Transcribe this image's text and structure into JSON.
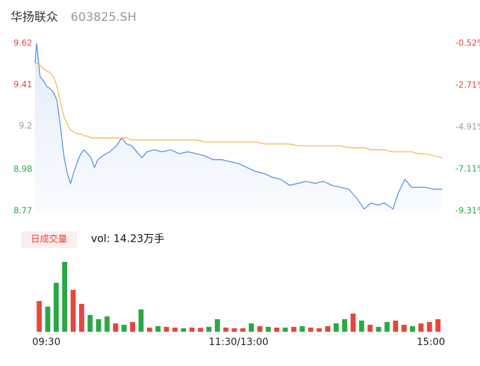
{
  "header": {
    "name": "华扬联众",
    "code": "603825.SH"
  },
  "chart_data": [
    {
      "type": "line",
      "x": [
        0,
        1,
        3,
        5,
        7,
        9,
        11,
        13,
        15,
        17,
        19,
        21,
        23,
        25,
        27,
        29,
        31,
        33,
        35,
        37,
        40,
        44,
        48,
        51,
        54,
        57,
        60,
        63,
        66,
        70,
        75,
        80,
        85,
        90,
        95,
        100,
        105,
        110,
        115,
        120,
        125,
        130,
        135,
        140,
        145,
        150,
        155,
        160,
        165,
        170,
        175,
        180,
        185,
        190,
        194,
        198,
        202,
        206,
        211,
        214,
        218,
        222,
        226,
        230,
        235,
        240
      ],
      "xlim": [
        0,
        240
      ],
      "series": [
        {
          "color": "#4a86e8",
          "area": true,
          "values": [
            9.52,
            9.62,
            9.45,
            9.43,
            9.4,
            9.39,
            9.37,
            9.33,
            9.2,
            9.05,
            8.96,
            8.91,
            8.97,
            9.02,
            9.06,
            9.08,
            9.06,
            9.04,
            8.99,
            9.03,
            9.05,
            9.07,
            9.1,
            9.14,
            9.11,
            9.1,
            9.07,
            9.04,
            9.07,
            9.08,
            9.07,
            9.08,
            9.06,
            9.07,
            9.06,
            9.05,
            9.03,
            9.03,
            9.02,
            9.01,
            8.99,
            8.97,
            8.96,
            8.94,
            8.93,
            8.9,
            8.91,
            8.92,
            8.91,
            8.92,
            8.9,
            8.89,
            8.88,
            8.83,
            8.78,
            8.81,
            8.8,
            8.81,
            8.78,
            8.86,
            8.93,
            8.89,
            8.89,
            8.89,
            8.88,
            8.88
          ]
        },
        {
          "color": "#f5b335",
          "area": false,
          "values": [
            9.52,
            9.52,
            9.51,
            9.49,
            9.48,
            9.47,
            9.45,
            9.4,
            9.32,
            9.25,
            9.21,
            9.18,
            9.17,
            9.16,
            9.16,
            9.15,
            9.15,
            9.14,
            9.14,
            9.14,
            9.14,
            9.14,
            9.14,
            9.14,
            9.14,
            9.13,
            9.13,
            9.13,
            9.13,
            9.13,
            9.13,
            9.13,
            9.13,
            9.13,
            9.13,
            9.12,
            9.12,
            9.12,
            9.12,
            9.12,
            9.12,
            9.12,
            9.11,
            9.11,
            9.11,
            9.11,
            9.1,
            9.1,
            9.1,
            9.1,
            9.1,
            9.1,
            9.09,
            9.09,
            9.09,
            9.08,
            9.08,
            9.08,
            9.07,
            9.07,
            9.07,
            9.07,
            9.06,
            9.06,
            9.05,
            9.04
          ]
        }
      ],
      "ylim": [
        8.77,
        9.62
      ],
      "yticks": [
        9.62,
        9.41,
        9.2,
        8.98,
        8.77
      ],
      "ytick_colors": [
        "#e8453c",
        "#e8453c",
        "#999999",
        "#2aa845",
        "#2aa845"
      ],
      "y2lim": [
        -9.31,
        -0.52
      ],
      "y2ticks": [
        {
          "value": -0.52,
          "label": "-0.52%"
        },
        {
          "value": -2.71,
          "label": "-2.71%"
        },
        {
          "value": -4.91,
          "label": "-4.91%"
        },
        {
          "value": -7.11,
          "label": "-7.11%"
        },
        {
          "value": -9.31,
          "label": "-9.31%"
        }
      ],
      "y2tick_colors": [
        "#e8453c",
        "#e8453c",
        "#999999",
        "#2aa845",
        "#2aa845"
      ]
    },
    {
      "type": "bar",
      "title": "日成交量",
      "subtitle": "vol: 14.23万手",
      "x": [
        0,
        5,
        10,
        15,
        20,
        25,
        30,
        35,
        40,
        45,
        50,
        55,
        60,
        65,
        70,
        75,
        80,
        85,
        90,
        95,
        100,
        105,
        110,
        115,
        120,
        125,
        130,
        135,
        140,
        145,
        150,
        155,
        160,
        165,
        170,
        175,
        180,
        185,
        190,
        195,
        200,
        205,
        210,
        215,
        220,
        225,
        230,
        235
      ],
      "xlim": [
        0,
        240
      ],
      "values": [
        2200,
        1800,
        3500,
        5000,
        3000,
        2000,
        1200,
        900,
        1100,
        600,
        500,
        700,
        1600,
        300,
        400,
        350,
        300,
        250,
        300,
        280,
        350,
        900,
        300,
        250,
        250,
        600,
        400,
        350,
        300,
        300,
        350,
        400,
        300,
        250,
        400,
        600,
        900,
        1300,
        800,
        500,
        350,
        700,
        800,
        500,
        400,
        600,
        700,
        900
      ],
      "colors": [
        "#e8453c",
        "#2aa845",
        "#2aa845",
        "#2aa845",
        "#e8453c",
        "#e8453c",
        "#2aa845",
        "#2aa845",
        "#2aa845",
        "#e8453c",
        "#2aa845",
        "#e8453c",
        "#2aa845",
        "#e8453c",
        "#2aa845",
        "#e8453c",
        "#e8453c",
        "#2aa845",
        "#e8453c",
        "#e8453c",
        "#2aa845",
        "#2aa845",
        "#e8453c",
        "#e8453c",
        "#e8453c",
        "#2aa845",
        "#e8453c",
        "#2aa845",
        "#e8453c",
        "#2aa845",
        "#e8453c",
        "#2aa845",
        "#e8453c",
        "#e8453c",
        "#e8453c",
        "#2aa845",
        "#2aa845",
        "#e8453c",
        "#2aa845",
        "#e8453c",
        "#2aa845",
        "#2aa845",
        "#e8453c",
        "#e8453c",
        "#2aa845",
        "#e8453c",
        "#e8453c",
        "#e8453c"
      ],
      "xticks": [
        {
          "value": 0,
          "label": "09:30"
        },
        {
          "value": 120,
          "label": "11:30/13:00"
        },
        {
          "value": 240,
          "label": "15:00"
        }
      ]
    }
  ]
}
